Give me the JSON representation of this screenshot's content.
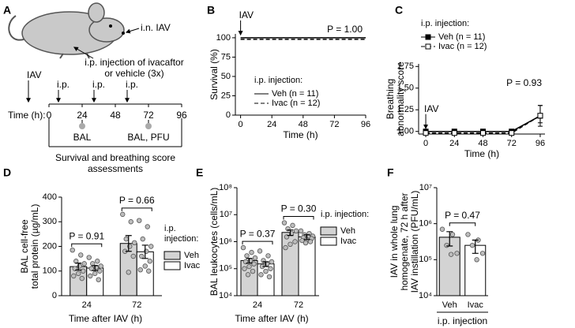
{
  "diagram": {
    "label": "A",
    "route_in": "i.n. IAV",
    "route_ip": [
      "i.p. injection of ivacaftor",
      "or vehicle (3x)"
    ],
    "events": [
      "IAV",
      "i.p.",
      "i.p.",
      "i.p."
    ],
    "timeline": {
      "label": "Time (h):",
      "ticks": [
        0,
        24,
        48,
        72,
        96
      ]
    },
    "samples": [
      "BAL",
      "BAL, PFU"
    ],
    "bracket": [
      "Survival and breathing score",
      "assessments"
    ]
  },
  "chart_data": [
    {
      "label": "B",
      "type": "line",
      "x": [
        0,
        96
      ],
      "series": [
        {
          "name": "Veh (n = 11)",
          "color": "#000000",
          "dash": "solid",
          "values": [
            100,
            100
          ]
        },
        {
          "name": "Ivac (n = 12)",
          "color": "#000000",
          "dash": "dashed",
          "values": [
            100,
            100
          ]
        }
      ],
      "xlim": [
        -4,
        96
      ],
      "ylim": [
        0,
        105
      ],
      "xticks": [
        0,
        24,
        48,
        72,
        96
      ],
      "yticks": [
        0,
        25,
        50,
        75,
        100
      ],
      "xlabel": "Time (h)",
      "ylabel": [
        "Survival (%)"
      ],
      "legend_title": [
        "i.p. injection:"
      ],
      "annotations": [
        "IAV",
        "P = 1.00"
      ]
    },
    {
      "label": "C",
      "type": "line",
      "x": [
        0,
        24,
        48,
        72,
        96
      ],
      "series": [
        {
          "name": "Veh (n = 11)",
          "color": "#000000",
          "dash": "solid",
          "marker": "filled",
          "values": [
            1,
            1,
            1,
            1,
            1.18
          ],
          "errors": [
            0,
            0,
            0,
            0,
            0.12
          ]
        },
        {
          "name": "Ivac (n = 12)",
          "color": "#000000",
          "dash": "dashed",
          "marker": "open",
          "values": [
            1,
            1,
            1,
            1,
            1.2
          ],
          "errors": [
            0,
            0,
            0,
            0,
            0.1
          ]
        }
      ],
      "xlim": [
        -6,
        100
      ],
      "ylim": [
        0.97,
        1.78
      ],
      "xticks": [
        0,
        24,
        48,
        72,
        96
      ],
      "yticks": [
        {
          "value": 1,
          "label": "1.00"
        },
        1.25,
        {
          "value": 1.5,
          "label": "1.50"
        },
        1.75
      ],
      "xlabel": "Time (h)",
      "ylabel": [
        "Breathing",
        "abnormality score"
      ],
      "legend_title": [
        "i.p. injection:"
      ],
      "annotations": [
        "IAV",
        "P = 0.93"
      ]
    },
    {
      "label": "D",
      "type": "bar",
      "categories": [
        "24",
        "72"
      ],
      "series": [
        {
          "name": "Veh",
          "color": "#d3d3d3",
          "values": [
            118,
            212
          ],
          "errors": [
            14,
            32
          ],
          "points": [
            [
              185,
              165,
              140,
              130,
              120,
              110,
              100,
              90,
              80,
              70
            ],
            [
              330,
              300,
              230,
              215,
              200,
              180,
              160,
              95
            ]
          ]
        },
        {
          "name": "Ivac",
          "color": "#ffffff",
          "values": [
            112,
            178
          ],
          "errors": [
            10,
            27
          ],
          "points": [
            [
              155,
              140,
              130,
              120,
              115,
              110,
              100,
              90,
              80,
              65
            ],
            [
              305,
              280,
              230,
              200,
              180,
              160,
              140,
              120,
              105,
              100
            ]
          ]
        }
      ],
      "ylim": [
        0,
        400
      ],
      "yticks": [
        0,
        100,
        200,
        300,
        400
      ],
      "xlabel": "Time after IAV (h)",
      "ylabel": [
        "BAL cell-free",
        "total protein (µg/mL)"
      ],
      "legend_title": [
        "i.p.",
        "injection:"
      ],
      "annotations": [
        "P = 0.91",
        "P = 0.66"
      ]
    },
    {
      "label": "E",
      "type": "bar",
      "log": true,
      "categories": [
        "24",
        "72"
      ],
      "series": [
        {
          "name": "Veh",
          "color": "#d3d3d3",
          "values": [
            200000,
            2200000
          ],
          "errors": [
            40000,
            500000
          ],
          "points": [
            [
              600000,
              400000,
              300000,
              250000,
              200000,
              180000,
              150000,
              120000,
              100000,
              80000,
              60000
            ],
            [
              5000000,
              4000000,
              3000000,
              2500000,
              2000000,
              1500000,
              1000000,
              800000,
              600000
            ]
          ]
        },
        {
          "name": "Ivac",
          "color": "#ffffff",
          "values": [
            150000,
            1500000
          ],
          "errors": [
            30000,
            300000
          ],
          "points": [
            [
              450000,
              300000,
              200000,
              180000,
              150000,
              120000,
              100000,
              80000,
              60000,
              50000
            ],
            [
              2500000,
              2000000,
              1800000,
              1600000,
              1500000,
              1400000,
              1300000,
              1200000,
              1100000,
              1000000,
              900000
            ]
          ]
        }
      ],
      "ylim": [
        10000,
        100000000
      ],
      "yticks": [
        {
          "value": 10000,
          "label": "10⁴"
        },
        {
          "value": 100000,
          "label": "10⁵"
        },
        {
          "value": 1000000,
          "label": "10⁶"
        },
        {
          "value": 10000000,
          "label": "10⁷"
        },
        {
          "value": 100000000,
          "label": "10⁸"
        }
      ],
      "xlabel": "Time after IAV (h)",
      "ylabel": [
        "BAL leukocytes (cells/mL)"
      ],
      "legend_title": [
        "i.p. injection:"
      ],
      "annotations": [
        "P = 0.37",
        "P = 0.30"
      ]
    },
    {
      "label": "F",
      "type": "bar",
      "log": true,
      "categories": [
        "Veh",
        "Ivac"
      ],
      "values": [
        420000,
        250000
      ],
      "colors": [
        "#d3d3d3",
        "#ffffff"
      ],
      "errors": [
        180000,
        100000
      ],
      "points": [
        [
          700000,
          500000,
          250000,
          150000,
          140000
        ],
        [
          500000,
          350000,
          250000,
          150000,
          100000
        ]
      ],
      "ylim": [
        10000,
        10000000
      ],
      "yticks": [
        {
          "value": 10000,
          "label": "10⁴"
        },
        {
          "value": 100000,
          "label": "10⁵"
        },
        {
          "value": 1000000,
          "label": "10⁶"
        },
        {
          "value": 10000000,
          "label": "10⁷"
        }
      ],
      "xlabel": "i.p. injection",
      "ylabel": [
        "IAV in whole lung",
        "homogenate, 72 h after",
        "IAV instillation (PFU/mL)"
      ],
      "annotations": [
        "P = 0.47"
      ]
    }
  ]
}
